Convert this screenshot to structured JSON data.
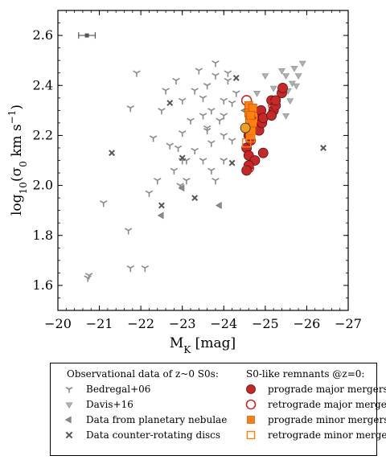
{
  "chart_data": {
    "type": "scatter",
    "xlabel": "M_K [mag]",
    "ylabel": "log10(σ0 km s−1)",
    "xlim": [
      -20,
      -27
    ],
    "ylim": [
      1.5,
      2.7
    ],
    "x_ticks": [
      -20,
      -21,
      -22,
      -23,
      -24,
      -25,
      -26,
      -27
    ],
    "y_ticks": [
      1.6,
      1.8,
      2.0,
      2.2,
      2.4,
      2.6
    ],
    "grid": false,
    "legend_placement": "below plot",
    "error_bar": {
      "x": -20.7,
      "y": 2.6,
      "xerr": 0.2
    },
    "legend": {
      "left_title": "Observational data of z~0 S0s:",
      "right_title": "S0-like remnants @z=0:"
    },
    "series": [
      {
        "name": "Bedregal+06",
        "marker": "tri",
        "color": "#8a8a8a",
        "points": [
          [
            -20.75,
            1.64
          ],
          [
            -20.72,
            1.63
          ],
          [
            -21.1,
            1.93
          ],
          [
            -21.7,
            1.82
          ],
          [
            -21.75,
            1.67
          ],
          [
            -21.75,
            2.31
          ],
          [
            -21.9,
            2.45
          ],
          [
            -22.1,
            1.67
          ],
          [
            -22.2,
            1.97
          ],
          [
            -22.3,
            2.19
          ],
          [
            -22.4,
            2.02
          ],
          [
            -22.5,
            2.3
          ],
          [
            -22.6,
            2.38
          ],
          [
            -22.7,
            2.16
          ],
          [
            -22.8,
            2.06
          ],
          [
            -22.85,
            2.42
          ],
          [
            -22.9,
            2.15
          ],
          [
            -23.0,
            2.34
          ],
          [
            -23.0,
            2.21
          ],
          [
            -23.1,
            2.02
          ],
          [
            -23.2,
            2.26
          ],
          [
            -23.3,
            2.38
          ],
          [
            -23.4,
            2.46
          ],
          [
            -23.5,
            2.28
          ],
          [
            -23.5,
            2.1
          ],
          [
            -23.6,
            2.22
          ],
          [
            -23.6,
            2.4
          ],
          [
            -23.7,
            2.3
          ],
          [
            -23.7,
            2.17
          ],
          [
            -23.8,
            2.44
          ],
          [
            -23.8,
            2.49
          ],
          [
            -23.9,
            2.26
          ],
          [
            -24.0,
            2.34
          ],
          [
            -24.0,
            2.1
          ],
          [
            -24.1,
            2.42
          ],
          [
            -24.1,
            2.45
          ],
          [
            -24.2,
            2.18
          ],
          [
            -24.2,
            2.33
          ],
          [
            -24.3,
            2.37
          ],
          [
            -23.7,
            2.06
          ],
          [
            -23.8,
            2.02
          ],
          [
            -23.6,
            2.23
          ],
          [
            -23.5,
            2.35
          ],
          [
            -23.3,
            2.14
          ],
          [
            -23.1,
            2.1
          ],
          [
            -23.0,
            2.1
          ],
          [
            -22.95,
            2.0
          ],
          [
            -24.0,
            2.2
          ],
          [
            -24.0,
            2.28
          ]
        ]
      },
      {
        "name": "Davis+16",
        "marker": "tri-down",
        "color": "#b0b0b0",
        "points": [
          [
            -24.8,
            2.37
          ],
          [
            -25.0,
            2.44
          ],
          [
            -25.2,
            2.39
          ],
          [
            -25.3,
            2.35
          ],
          [
            -25.4,
            2.46
          ],
          [
            -25.5,
            2.44
          ],
          [
            -25.55,
            2.38
          ],
          [
            -25.6,
            2.34
          ],
          [
            -25.65,
            2.41
          ],
          [
            -25.7,
            2.47
          ],
          [
            -25.75,
            2.4
          ],
          [
            -25.8,
            2.44
          ],
          [
            -25.9,
            2.49
          ],
          [
            -25.5,
            2.28
          ],
          [
            -25.2,
            2.28
          ]
        ]
      },
      {
        "name": "Data from planetary nebulae",
        "marker": "tri-left",
        "color": "#8a8a8a",
        "points": [
          [
            -22.5,
            1.88
          ],
          [
            -23.0,
            1.99
          ],
          [
            -23.9,
            1.92
          ],
          [
            -24.5,
            2.3
          ]
        ]
      },
      {
        "name": "Data counter-rotating discs",
        "marker": "x",
        "color": "#555555",
        "points": [
          [
            -21.3,
            2.13
          ],
          [
            -22.5,
            1.92
          ],
          [
            -22.7,
            2.33
          ],
          [
            -23.0,
            2.11
          ],
          [
            -23.3,
            1.95
          ],
          [
            -24.2,
            2.09
          ],
          [
            -24.3,
            2.43
          ],
          [
            -26.4,
            2.15
          ]
        ]
      },
      {
        "name": "prograde major mergers",
        "marker": "circle-filled",
        "color": "#c62828",
        "points": [
          [
            -24.55,
            2.15
          ],
          [
            -24.6,
            2.12
          ],
          [
            -24.62,
            2.22
          ],
          [
            -24.65,
            2.18
          ],
          [
            -24.7,
            2.25
          ],
          [
            -24.75,
            2.1
          ],
          [
            -24.6,
            2.08
          ],
          [
            -24.55,
            2.06
          ],
          [
            -24.8,
            2.28
          ],
          [
            -24.85,
            2.22
          ],
          [
            -24.9,
            2.3
          ],
          [
            -24.92,
            2.25
          ],
          [
            -24.95,
            2.27
          ],
          [
            -25.15,
            2.34
          ],
          [
            -25.2,
            2.3
          ],
          [
            -25.25,
            2.32
          ],
          [
            -25.15,
            2.28
          ],
          [
            -25.4,
            2.37
          ],
          [
            -25.42,
            2.39
          ],
          [
            -24.95,
            2.13
          ],
          [
            -24.6,
            2.2
          ],
          [
            -25.25,
            2.34
          ]
        ]
      },
      {
        "name": "retrograde major mergers",
        "marker": "circle-open",
        "color": "#c62828",
        "points": [
          [
            -24.55,
            2.34
          ],
          [
            -24.6,
            2.07
          ],
          [
            -25.2,
            2.32
          ]
        ]
      },
      {
        "name": "prograde minor mergers",
        "marker": "square-filled",
        "color": "#ff7f0e",
        "points": [
          [
            -24.6,
            2.32
          ],
          [
            -24.6,
            2.29
          ],
          [
            -24.62,
            2.26
          ],
          [
            -24.6,
            2.23
          ],
          [
            -24.64,
            2.2
          ],
          [
            -24.67,
            2.22
          ],
          [
            -24.7,
            2.25
          ],
          [
            -24.7,
            2.29
          ],
          [
            -24.7,
            2.31
          ],
          [
            -24.65,
            2.28
          ]
        ]
      },
      {
        "name": "retrograde minor mergers",
        "marker": "square-open",
        "color": "#ff7f0e",
        "points": [
          [
            -24.55,
            2.17
          ],
          [
            -24.65,
            2.19
          ],
          [
            -24.7,
            2.27
          ]
        ]
      },
      {
        "name": "",
        "marker": "circle-filled-dark",
        "color": "#f0a020",
        "points": [
          [
            -24.52,
            2.23
          ]
        ]
      }
    ]
  }
}
